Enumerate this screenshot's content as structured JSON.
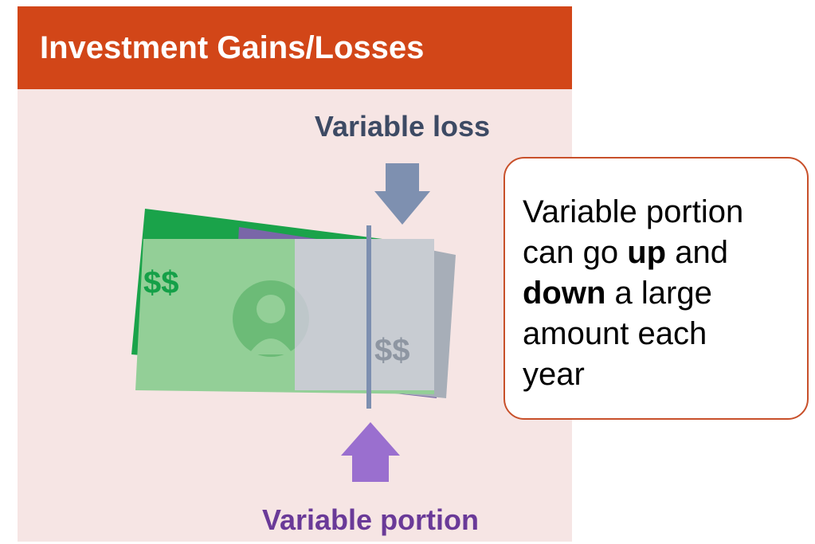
{
  "header": {
    "title": "Investment Gains/Losses"
  },
  "top_label": "Variable loss",
  "bottom_label": "Variable portion",
  "bill": {
    "front_symbol": "$$",
    "back_symbol": "$$"
  },
  "callout": {
    "parts": [
      "Variable portion",
      "can go ",
      "up",
      " and",
      "down",
      " a large",
      "amount each",
      "year"
    ]
  }
}
